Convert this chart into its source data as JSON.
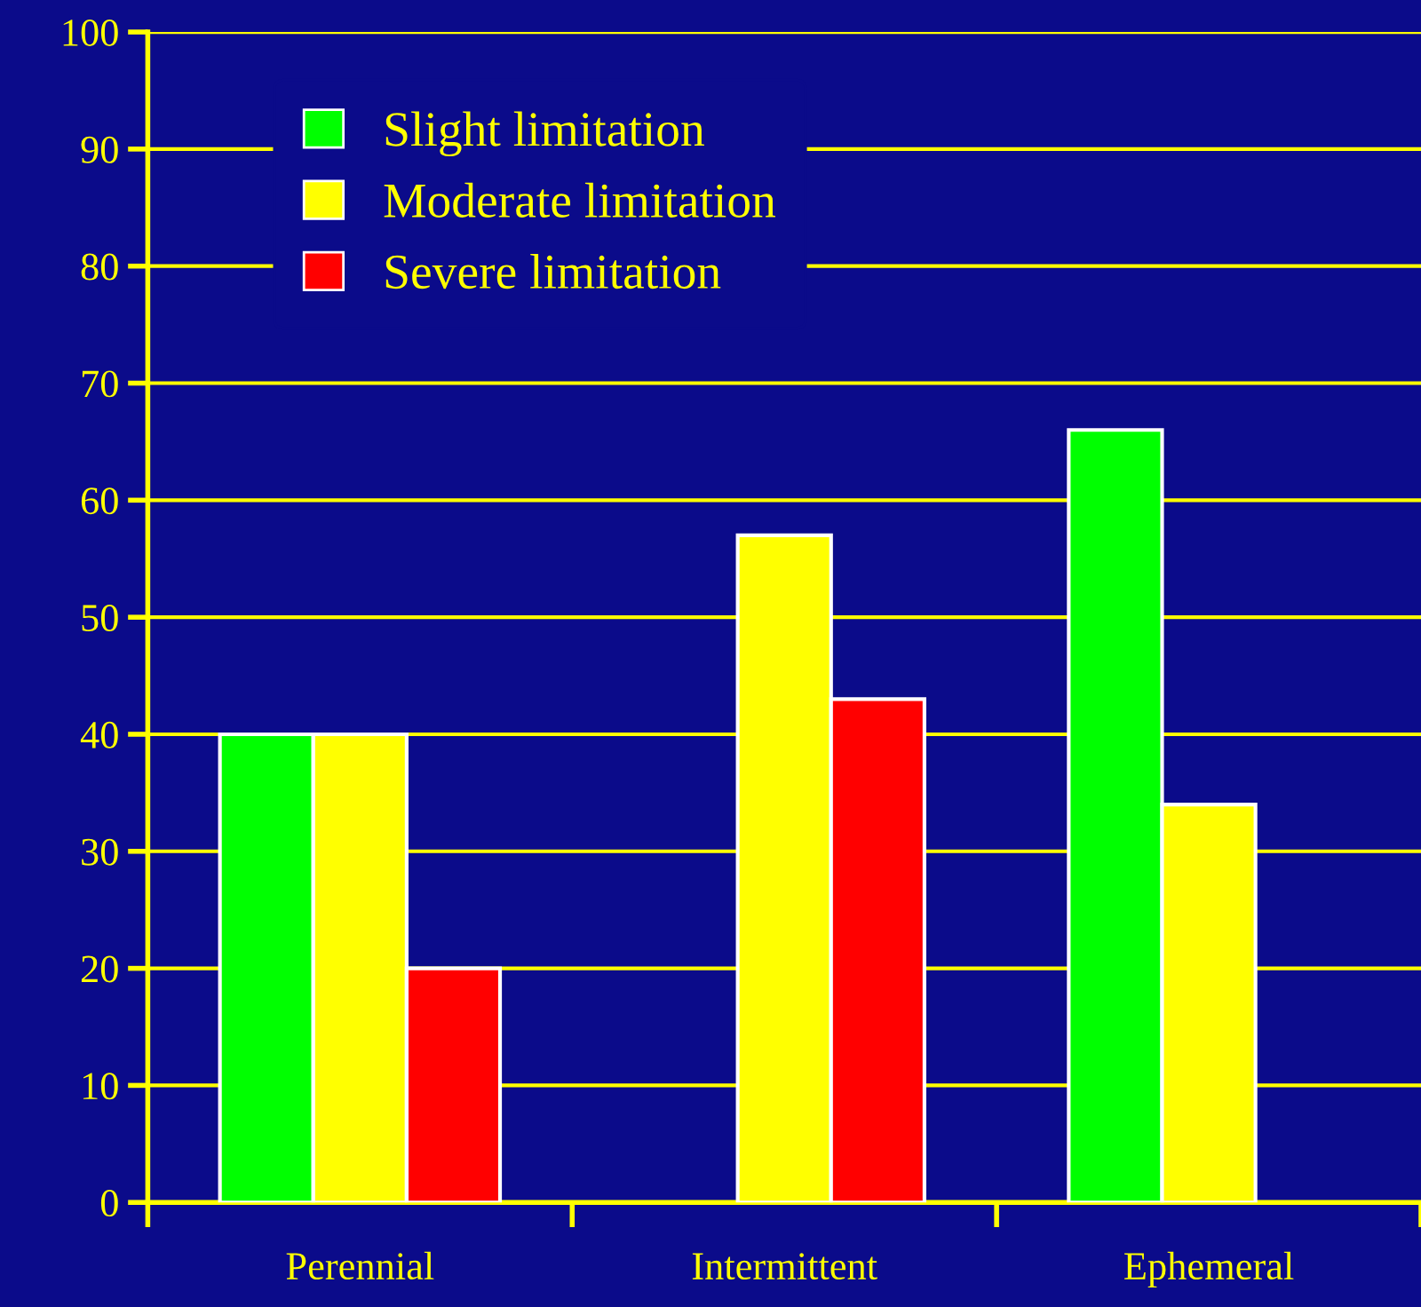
{
  "chart_data": {
    "type": "bar",
    "categories": [
      "Perennial",
      "Intermittent",
      "Ephemeral"
    ],
    "series": [
      {
        "name": "Slight limitation",
        "color": "#00ff00",
        "values": [
          40,
          null,
          66
        ]
      },
      {
        "name": "Moderate limitation",
        "color": "#ffff00",
        "values": [
          40,
          57,
          34
        ]
      },
      {
        "name": "Severe limitation",
        "color": "#ff0000",
        "values": [
          20,
          43,
          null
        ]
      }
    ],
    "ylim": [
      0,
      100
    ],
    "yticks": [
      0,
      10,
      20,
      30,
      40,
      50,
      60,
      70,
      80,
      90,
      100
    ],
    "grid": "y",
    "legend": "top left"
  }
}
